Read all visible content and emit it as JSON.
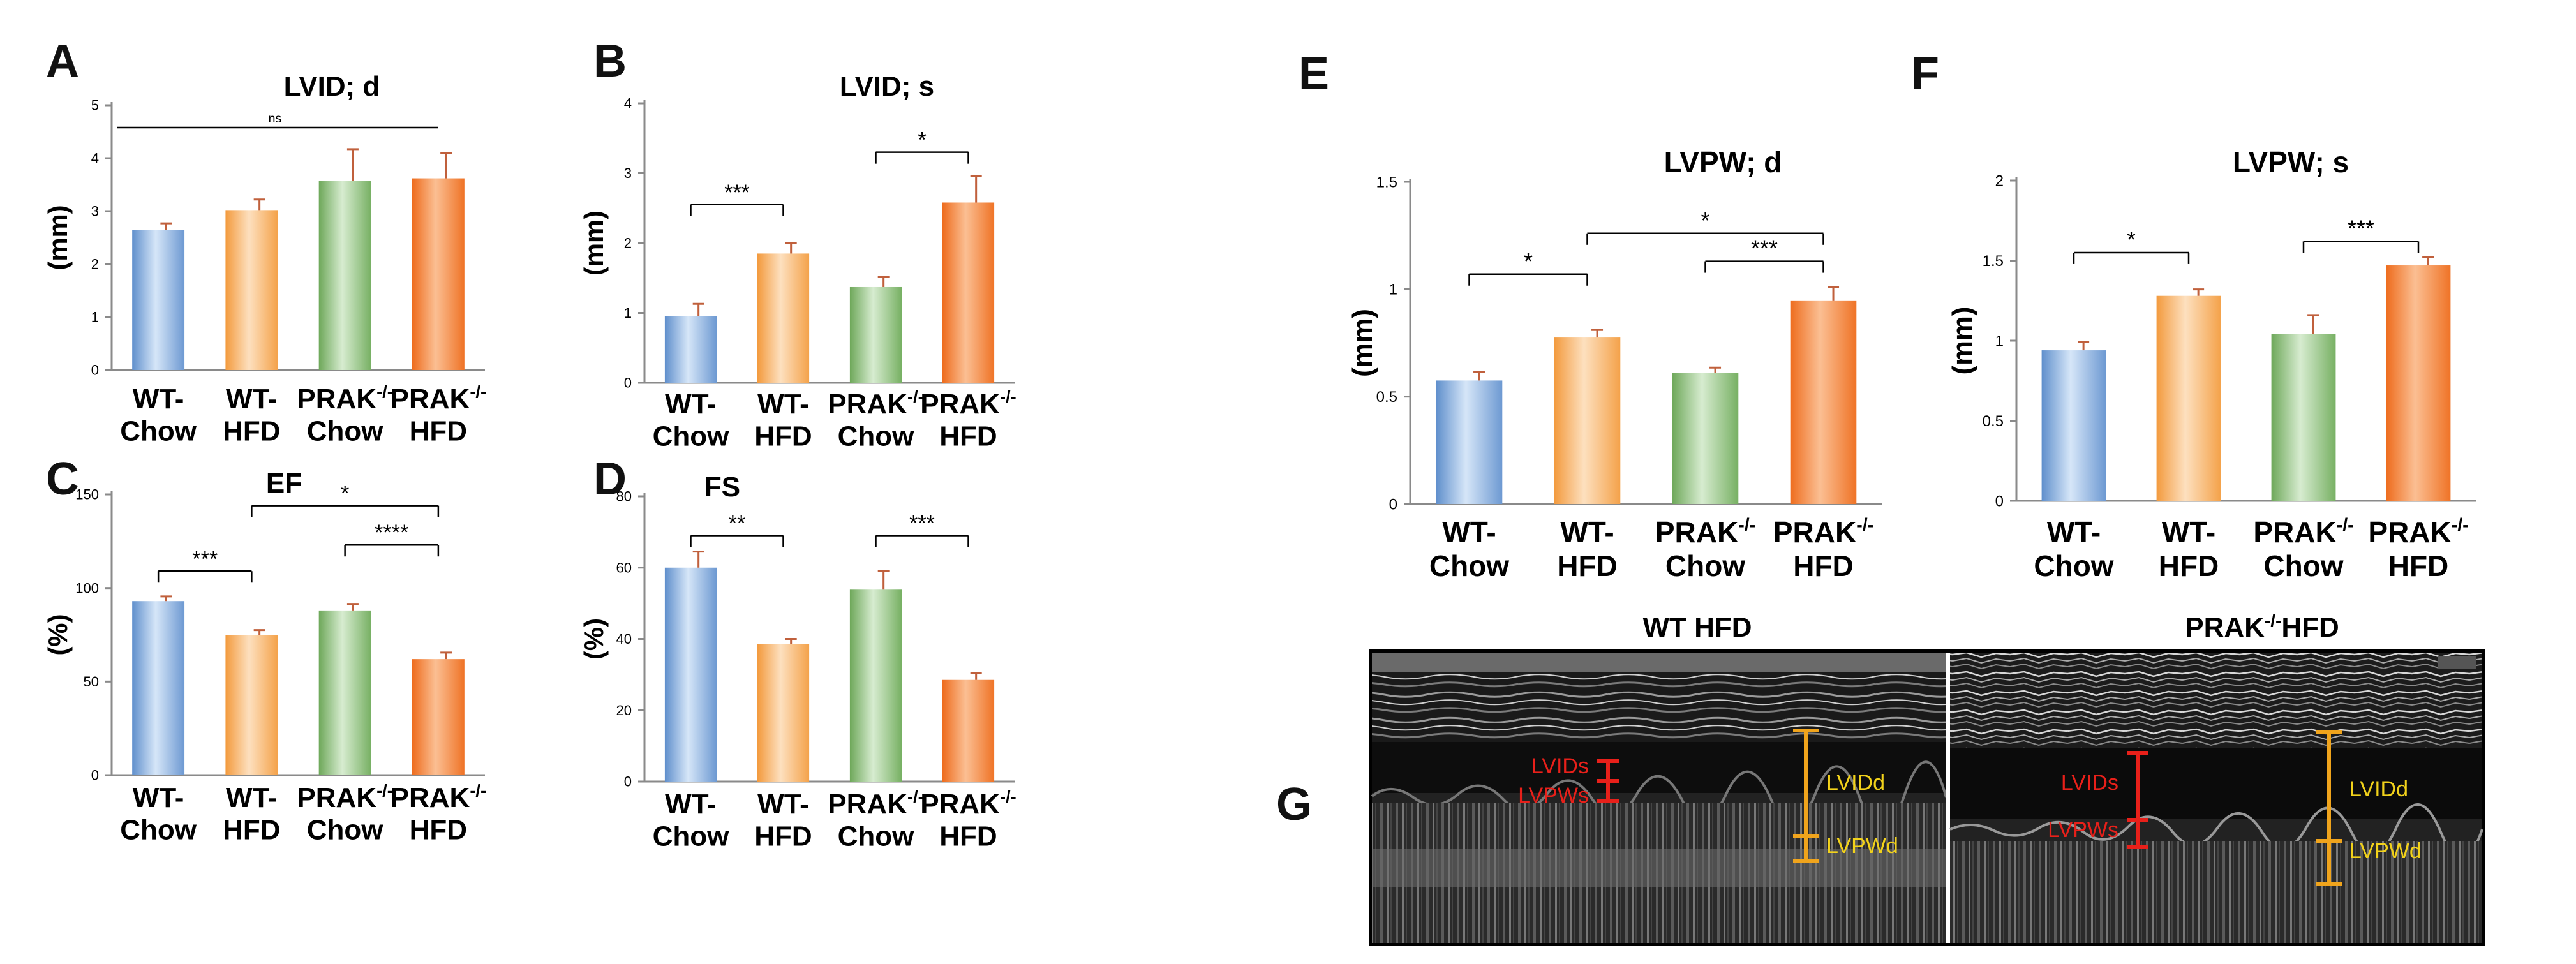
{
  "panel_letters": {
    "A": "A",
    "B": "B",
    "C": "C",
    "D": "D",
    "E": "E",
    "F": "F",
    "G": "G"
  },
  "colors": {
    "blue": "#8db4e2",
    "light_orange": "#f9bd7b",
    "green": "#9bc98a",
    "orange": "#f58b3c",
    "error": "#c0603c"
  },
  "chart_data": [
    {
      "panel": "A",
      "type": "bar",
      "title": "LVID; d",
      "ylabel": "(mm)",
      "xlabel": "",
      "categories": [
        [
          "WT-",
          "Chow"
        ],
        [
          "WT-",
          "HFD"
        ],
        [
          "PRAK-/-",
          "Chow"
        ],
        [
          "PRAK-/-",
          "HFD"
        ]
      ],
      "values": [
        2.65,
        3.02,
        3.57,
        3.62
      ],
      "errors": [
        0.12,
        0.2,
        0.6,
        0.48
      ],
      "ylim": [
        0,
        5
      ],
      "yticks": [
        0,
        1,
        2,
        3,
        4,
        5
      ],
      "significance": [
        {
          "from": 0,
          "to": 3,
          "label": "ns",
          "style": "line"
        }
      ]
    },
    {
      "panel": "B",
      "type": "bar",
      "title": "LVID; s",
      "ylabel": "(mm)",
      "xlabel": "",
      "categories": [
        [
          "WT-",
          "Chow"
        ],
        [
          "WT-",
          "HFD"
        ],
        [
          "PRAK-/-",
          "Chow"
        ],
        [
          "PRAK-/-",
          "HFD"
        ]
      ],
      "values": [
        0.95,
        1.85,
        1.37,
        2.58
      ],
      "errors": [
        0.18,
        0.15,
        0.15,
        0.38
      ],
      "ylim": [
        0,
        4
      ],
      "yticks": [
        0,
        1,
        2,
        3,
        4
      ],
      "significance": [
        {
          "from": 0,
          "to": 1,
          "label": "***",
          "style": "bracket",
          "level": 2.55
        },
        {
          "from": 2,
          "to": 3,
          "label": "*",
          "style": "bracket",
          "level": 3.3
        }
      ]
    },
    {
      "panel": "C",
      "type": "bar",
      "title": "EF",
      "ylabel": "(%)",
      "xlabel": "",
      "categories": [
        [
          "WT-",
          "Chow"
        ],
        [
          "WT-",
          "HFD"
        ],
        [
          "PRAK-/-",
          "Chow"
        ],
        [
          "PRAK-/-",
          "HFD"
        ]
      ],
      "values": [
        93,
        75,
        88,
        62
      ],
      "errors": [
        2.5,
        2.5,
        3.5,
        3.5
      ],
      "ylim": [
        0,
        150
      ],
      "yticks": [
        0,
        50,
        100,
        150
      ],
      "significance": [
        {
          "from": 0,
          "to": 1,
          "label": "***",
          "style": "bracket",
          "level": 109
        },
        {
          "from": 1,
          "to": 3,
          "label": "*",
          "style": "bracket",
          "level": 144
        },
        {
          "from": 2,
          "to": 3,
          "label": "****",
          "style": "bracket",
          "level": 123
        }
      ]
    },
    {
      "panel": "D",
      "type": "bar",
      "title": "FS",
      "ylabel": "(%)",
      "xlabel": "",
      "categories": [
        [
          "WT-",
          "Chow"
        ],
        [
          "WT-",
          "HFD"
        ],
        [
          "PRAK-/-",
          "Chow"
        ],
        [
          "PRAK-/-",
          "HFD"
        ]
      ],
      "values": [
        60,
        38.5,
        54,
        28.5
      ],
      "errors": [
        4.5,
        1.5,
        5,
        2
      ],
      "ylim": [
        0,
        80
      ],
      "yticks": [
        0,
        20,
        40,
        60,
        80
      ],
      "significance": [
        {
          "from": 0,
          "to": 1,
          "label": "**",
          "style": "bracket",
          "level": 69
        },
        {
          "from": 2,
          "to": 3,
          "label": "***",
          "style": "bracket",
          "level": 69
        }
      ]
    },
    {
      "panel": "E",
      "type": "bar",
      "title": "LVPW; d",
      "ylabel": "(mm)",
      "xlabel": "",
      "categories": [
        [
          "WT-",
          "Chow"
        ],
        [
          "WT-",
          "HFD"
        ],
        [
          "PRAK-/-",
          "Chow"
        ],
        [
          "PRAK-/-",
          "HFD"
        ]
      ],
      "values": [
        0.575,
        0.775,
        0.61,
        0.945
      ],
      "errors": [
        0.04,
        0.035,
        0.025,
        0.065
      ],
      "ylim": [
        0,
        1.5
      ],
      "yticks": [
        0,
        0.5,
        1,
        1.5
      ],
      "significance": [
        {
          "from": 0,
          "to": 1,
          "label": "*",
          "style": "bracket",
          "level": 1.07
        },
        {
          "from": 1,
          "to": 3,
          "label": "*",
          "style": "bracket",
          "level": 1.26
        },
        {
          "from": 2,
          "to": 3,
          "label": "***",
          "style": "bracket",
          "level": 1.13
        }
      ]
    },
    {
      "panel": "F",
      "type": "bar",
      "title": "LVPW; s",
      "ylabel": "(mm)",
      "xlabel": "",
      "categories": [
        [
          "WT-",
          "Chow"
        ],
        [
          "WT-",
          "HFD"
        ],
        [
          "PRAK-/-",
          "Chow"
        ],
        [
          "PRAK-/-",
          "HFD"
        ]
      ],
      "values": [
        0.94,
        1.28,
        1.04,
        1.47
      ],
      "errors": [
        0.05,
        0.04,
        0.12,
        0.05
      ],
      "ylim": [
        0,
        2
      ],
      "yticks": [
        0,
        0.5,
        1,
        1.5,
        2
      ],
      "significance": [
        {
          "from": 0,
          "to": 1,
          "label": "*",
          "style": "bracket",
          "level": 1.55
        },
        {
          "from": 2,
          "to": 3,
          "label": "***",
          "style": "bracket",
          "level": 1.62
        }
      ]
    }
  ],
  "echo": {
    "left_title": "WT HFD",
    "right_title_main": "PRAK",
    "right_title_sup": "-/-",
    "right_title_tail": "HFD",
    "labels": {
      "lvids": "LVIDs",
      "lvpws": "LVPWs",
      "lvidd": "LVIDd",
      "lvpwd": "LVPWd"
    },
    "red": "#e8201a",
    "yellow": "#f2d21b",
    "orange": "#f0a41c"
  }
}
